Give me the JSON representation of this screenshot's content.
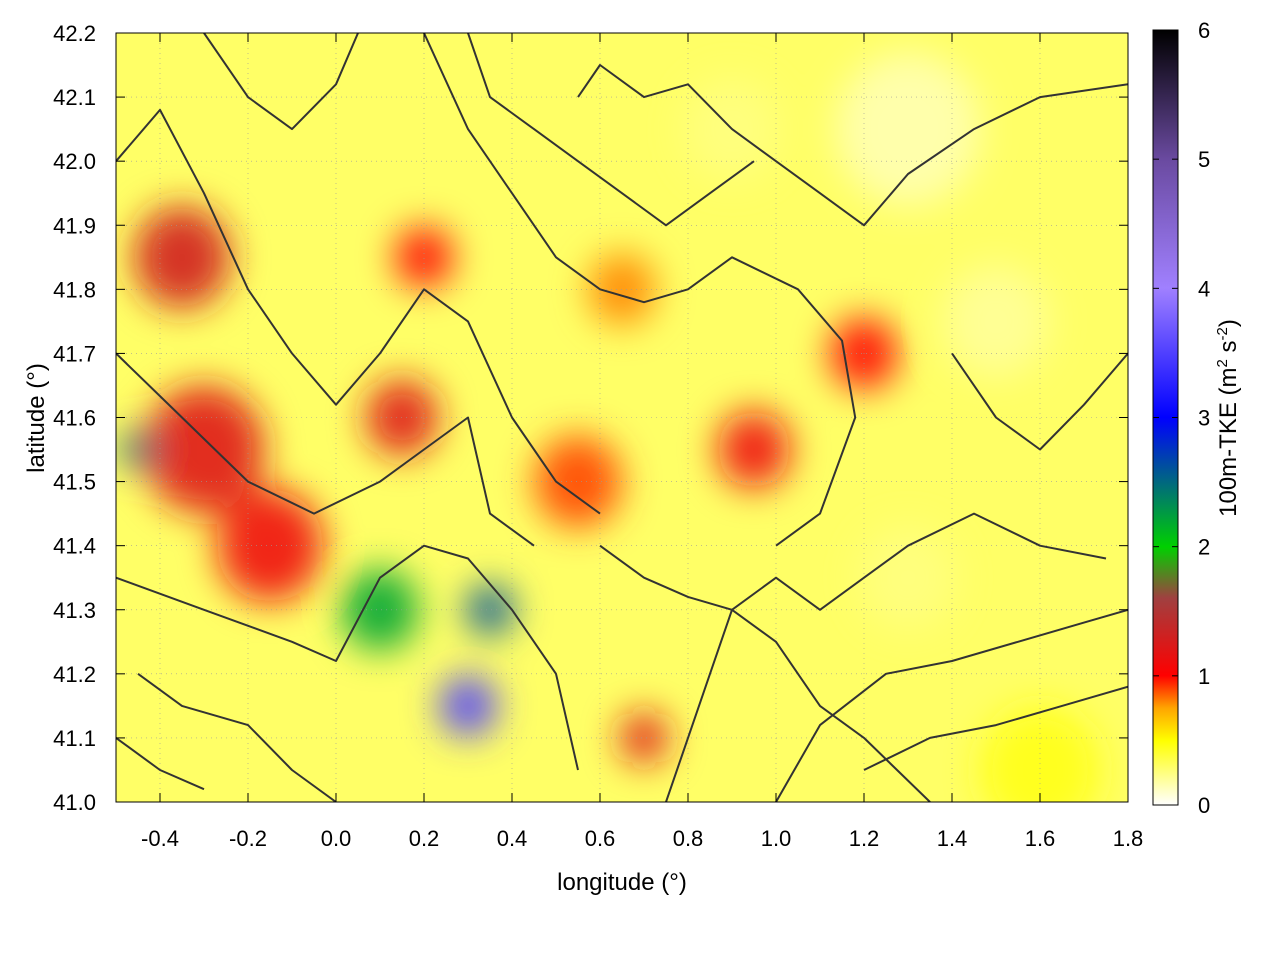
{
  "chart_data": {
    "type": "heatmap",
    "xlabel": "longitude (°)",
    "ylabel": "latitude (°)",
    "colorbar_label_main": "100m-TKE (m",
    "colorbar_label_sup1": "2",
    "colorbar_label_mid": " s",
    "colorbar_label_sup2": "-2",
    "colorbar_label_end": ")",
    "xlim": [
      -0.5,
      1.8
    ],
    "ylim": [
      41.0,
      42.2
    ],
    "zlim": [
      0,
      6
    ],
    "xticks": [
      "-0.4",
      "-0.2",
      "0.0",
      "0.2",
      "0.4",
      "0.6",
      "0.8",
      "1.0",
      "1.2",
      "1.4",
      "1.6",
      "1.8"
    ],
    "xtick_values": [
      -0.4,
      -0.2,
      0.0,
      0.2,
      0.4,
      0.6,
      0.8,
      1.0,
      1.2,
      1.4,
      1.6,
      1.8
    ],
    "yticks": [
      "41.0",
      "41.1",
      "41.2",
      "41.3",
      "41.4",
      "41.5",
      "41.6",
      "41.7",
      "41.8",
      "41.9",
      "42.0",
      "42.1",
      "42.2"
    ],
    "ytick_values": [
      41.0,
      41.1,
      41.2,
      41.3,
      41.4,
      41.5,
      41.6,
      41.7,
      41.8,
      41.9,
      42.0,
      42.1,
      42.2
    ],
    "cbticks": [
      "0",
      "1",
      "2",
      "3",
      "4",
      "5",
      "6"
    ],
    "cbtick_values": [
      0,
      1,
      2,
      3,
      4,
      5,
      6
    ],
    "grid": true,
    "colormap": [
      {
        "v": 0.0,
        "color": "#ffffff"
      },
      {
        "v": 0.5,
        "color": "#ffff00"
      },
      {
        "v": 0.75,
        "color": "#ffa500"
      },
      {
        "v": 1.0,
        "color": "#ff0000"
      },
      {
        "v": 1.6,
        "color": "#a04040"
      },
      {
        "v": 2.0,
        "color": "#00d000"
      },
      {
        "v": 3.0,
        "color": "#0000ff"
      },
      {
        "v": 4.0,
        "color": "#a080ff"
      },
      {
        "v": 5.0,
        "color": "#6a4aa0"
      },
      {
        "v": 6.0,
        "color": "#000000"
      }
    ],
    "tke_regions": [
      {
        "lon": -0.35,
        "lat": 41.85,
        "r": 0.2,
        "v": 1.3
      },
      {
        "lon": -0.3,
        "lat": 41.55,
        "r": 0.25,
        "v": 1.2
      },
      {
        "lon": -0.15,
        "lat": 41.4,
        "r": 0.22,
        "v": 1.1
      },
      {
        "lon": 0.1,
        "lat": 41.3,
        "r": 0.16,
        "v": 2.2
      },
      {
        "lon": 0.3,
        "lat": 41.15,
        "r": 0.12,
        "v": 3.5
      },
      {
        "lon": 0.35,
        "lat": 41.3,
        "r": 0.1,
        "v": 2.6
      },
      {
        "lon": 0.15,
        "lat": 41.6,
        "r": 0.15,
        "v": 1.2
      },
      {
        "lon": 0.2,
        "lat": 41.85,
        "r": 0.12,
        "v": 1.0
      },
      {
        "lon": 0.55,
        "lat": 41.5,
        "r": 0.18,
        "v": 0.9
      },
      {
        "lon": 0.95,
        "lat": 41.55,
        "r": 0.15,
        "v": 1.1
      },
      {
        "lon": 1.2,
        "lat": 41.7,
        "r": 0.14,
        "v": 1.0
      },
      {
        "lon": 0.7,
        "lat": 41.1,
        "r": 0.1,
        "v": 1.2
      },
      {
        "lon": -0.45,
        "lat": 41.55,
        "r": 0.08,
        "v": 2.5
      },
      {
        "lon": 0.65,
        "lat": 41.8,
        "r": 0.14,
        "v": 0.8
      },
      {
        "lon": 1.6,
        "lat": 41.05,
        "r": 0.25,
        "v": 0.45
      },
      {
        "lon": 1.5,
        "lat": 41.75,
        "r": 0.22,
        "v": 0.2
      },
      {
        "lon": 1.3,
        "lat": 42.05,
        "r": 0.3,
        "v": 0.15
      },
      {
        "lon": 0.9,
        "lat": 42.05,
        "r": 0.2,
        "v": 0.25
      },
      {
        "lon": 1.3,
        "lat": 41.35,
        "r": 0.2,
        "v": 0.25
      }
    ],
    "contours": [
      [
        [
          -0.5,
          41.35
        ],
        [
          -0.3,
          41.3
        ],
        [
          -0.1,
          41.25
        ],
        [
          0.0,
          41.22
        ],
        [
          0.1,
          41.35
        ],
        [
          0.2,
          41.4
        ],
        [
          0.3,
          41.38
        ],
        [
          0.4,
          41.3
        ],
        [
          0.5,
          41.2
        ],
        [
          0.55,
          41.05
        ]
      ],
      [
        [
          -0.5,
          41.7
        ],
        [
          -0.35,
          41.6
        ],
        [
          -0.2,
          41.5
        ],
        [
          -0.05,
          41.45
        ],
        [
          0.1,
          41.5
        ],
        [
          0.2,
          41.55
        ],
        [
          0.3,
          41.6
        ],
        [
          0.35,
          41.45
        ],
        [
          0.45,
          41.4
        ]
      ],
      [
        [
          -0.5,
          42.0
        ],
        [
          -0.4,
          42.08
        ],
        [
          -0.3,
          41.95
        ],
        [
          -0.2,
          41.8
        ],
        [
          -0.1,
          41.7
        ],
        [
          0.0,
          41.62
        ],
        [
          0.1,
          41.7
        ],
        [
          0.2,
          41.8
        ],
        [
          0.3,
          41.75
        ],
        [
          0.4,
          41.6
        ],
        [
          0.5,
          41.5
        ],
        [
          0.6,
          41.45
        ]
      ],
      [
        [
          0.2,
          42.2
        ],
        [
          0.3,
          42.05
        ],
        [
          0.4,
          41.95
        ],
        [
          0.5,
          41.85
        ],
        [
          0.6,
          41.8
        ],
        [
          0.7,
          41.78
        ],
        [
          0.8,
          41.8
        ],
        [
          0.9,
          41.85
        ],
        [
          1.05,
          41.8
        ],
        [
          1.15,
          41.72
        ],
        [
          1.18,
          41.6
        ],
        [
          1.1,
          41.45
        ],
        [
          1.0,
          41.4
        ]
      ],
      [
        [
          0.6,
          41.4
        ],
        [
          0.7,
          41.35
        ],
        [
          0.8,
          41.32
        ],
        [
          0.9,
          41.3
        ],
        [
          1.0,
          41.25
        ],
        [
          1.1,
          41.15
        ],
        [
          1.2,
          41.1
        ],
        [
          1.35,
          41.0
        ]
      ],
      [
        [
          0.75,
          41.0
        ],
        [
          0.8,
          41.1
        ],
        [
          0.85,
          41.2
        ],
        [
          0.9,
          41.3
        ],
        [
          1.0,
          41.35
        ],
        [
          1.1,
          41.3
        ],
        [
          1.2,
          41.35
        ],
        [
          1.3,
          41.4
        ],
        [
          1.45,
          41.45
        ],
        [
          1.6,
          41.4
        ],
        [
          1.75,
          41.38
        ]
      ],
      [
        [
          1.0,
          41.0
        ],
        [
          1.1,
          41.12
        ],
        [
          1.25,
          41.2
        ],
        [
          1.4,
          41.22
        ],
        [
          1.55,
          41.25
        ],
        [
          1.7,
          41.28
        ],
        [
          1.8,
          41.3
        ]
      ],
      [
        [
          1.2,
          41.05
        ],
        [
          1.35,
          41.1
        ],
        [
          1.5,
          41.12
        ],
        [
          1.65,
          41.15
        ],
        [
          1.8,
          41.18
        ]
      ],
      [
        [
          0.55,
          42.1
        ],
        [
          0.6,
          42.15
        ],
        [
          0.7,
          42.1
        ],
        [
          0.8,
          42.12
        ],
        [
          0.9,
          42.05
        ],
        [
          1.0,
          42.0
        ],
        [
          1.1,
          41.95
        ],
        [
          1.2,
          41.9
        ],
        [
          1.3,
          41.98
        ],
        [
          1.45,
          42.05
        ],
        [
          1.6,
          42.1
        ],
        [
          1.8,
          42.12
        ]
      ],
      [
        [
          1.4,
          41.7
        ],
        [
          1.5,
          41.6
        ],
        [
          1.6,
          41.55
        ],
        [
          1.7,
          41.62
        ],
        [
          1.8,
          41.7
        ]
      ],
      [
        [
          0.3,
          42.2
        ],
        [
          0.35,
          42.1
        ],
        [
          0.45,
          42.05
        ],
        [
          0.55,
          42.0
        ],
        [
          0.65,
          41.95
        ],
        [
          0.75,
          41.9
        ],
        [
          0.85,
          41.95
        ],
        [
          0.95,
          42.0
        ]
      ],
      [
        [
          -0.45,
          41.2
        ],
        [
          -0.35,
          41.15
        ],
        [
          -0.2,
          41.12
        ],
        [
          -0.1,
          41.05
        ],
        [
          0.0,
          41.0
        ]
      ],
      [
        [
          -0.5,
          41.1
        ],
        [
          -0.4,
          41.05
        ],
        [
          -0.3,
          41.02
        ]
      ],
      [
        [
          -0.3,
          42.2
        ],
        [
          -0.2,
          42.1
        ],
        [
          -0.1,
          42.05
        ],
        [
          0.0,
          42.12
        ],
        [
          0.05,
          42.2
        ]
      ]
    ]
  }
}
